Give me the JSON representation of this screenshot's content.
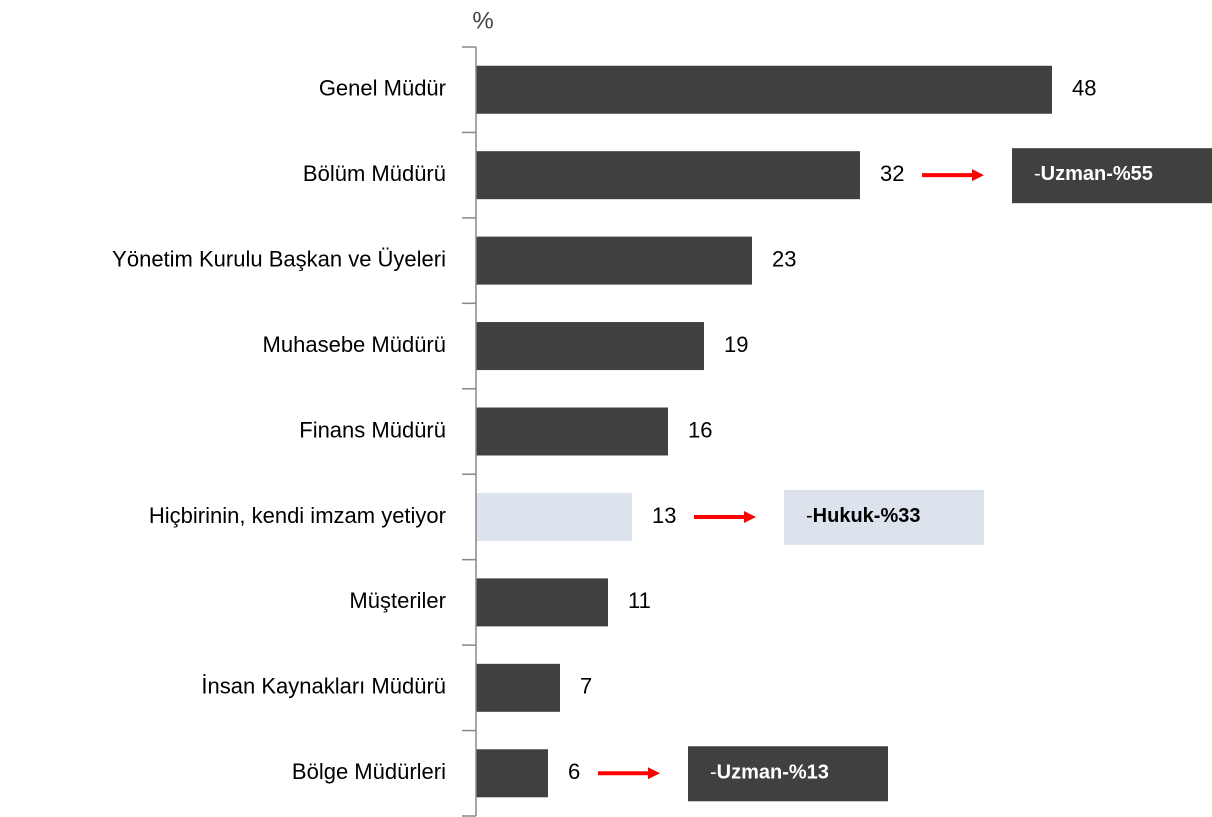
{
  "chart_data": {
    "type": "bar",
    "orientation": "horizontal",
    "unit_label": "%",
    "categories": [
      "Genel Müdür",
      "Bölüm Müdürü",
      "Yönetim Kurulu Başkan ve Üyeleri",
      "Muhasebe Müdürü",
      "Finans Müdürü",
      "Hiçbirinin, kendi imzam yetiyor",
      "Müşteriler",
      "İnsan Kaynakları Müdürü",
      "Bölge Müdürleri"
    ],
    "values": [
      48,
      32,
      23,
      19,
      16,
      13,
      11,
      7,
      6
    ],
    "colors": [
      "#404040",
      "#404040",
      "#404040",
      "#404040",
      "#404040",
      "#dce3ec",
      "#404040",
      "#404040",
      "#404040"
    ],
    "xlim": [
      0,
      60
    ],
    "annotations": [
      {
        "category": "Bölüm Müdürü",
        "prefix": "-",
        "text": "Uzman-%55",
        "color": "#404040",
        "text_color": "#ffffff",
        "arrow_color": "#ff0000"
      },
      {
        "category": "Hiçbirinin, kendi imzam yetiyor",
        "prefix": "-",
        "text": "Hukuk-%33",
        "color": "#dce3ec",
        "text_color": "#000000",
        "arrow_color": "#ff0000"
      },
      {
        "category": "Bölge Müdürleri",
        "prefix": "-",
        "text": "Uzman-%13",
        "color": "#404040",
        "text_color": "#ffffff",
        "arrow_color": "#ff0000"
      }
    ]
  }
}
